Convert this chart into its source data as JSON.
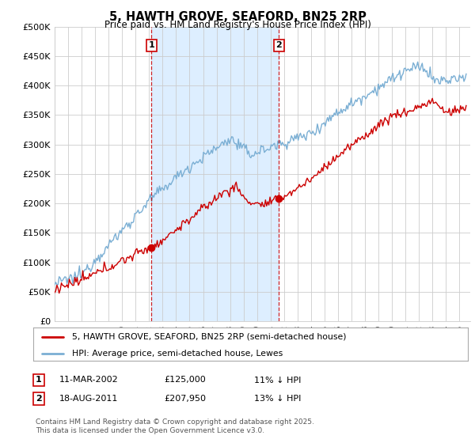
{
  "title": "5, HAWTH GROVE, SEAFORD, BN25 2RP",
  "subtitle": "Price paid vs. HM Land Registry's House Price Index (HPI)",
  "ylim": [
    0,
    500000
  ],
  "yticks": [
    0,
    50000,
    100000,
    150000,
    200000,
    250000,
    300000,
    350000,
    400000,
    450000,
    500000
  ],
  "ytick_labels": [
    "£0",
    "£50K",
    "£100K",
    "£150K",
    "£200K",
    "£250K",
    "£300K",
    "£350K",
    "£400K",
    "£450K",
    "£500K"
  ],
  "price_color": "#cc0000",
  "hpi_color": "#7bafd4",
  "vline_color": "#cc0000",
  "plot_bg_color": "#ffffff",
  "shade_color": "#ddeeff",
  "transaction1_x": 2002.18,
  "transaction1_price": 125000,
  "transaction2_x": 2011.63,
  "transaction2_price": 207950,
  "legend1": "5, HAWTH GROVE, SEAFORD, BN25 2RP (semi-detached house)",
  "legend2": "HPI: Average price, semi-detached house, Lewes",
  "note1_label": "1",
  "note1_date": "11-MAR-2002",
  "note1_price": "£125,000",
  "note1_hpi": "11% ↓ HPI",
  "note2_label": "2",
  "note2_date": "18-AUG-2011",
  "note2_price": "£207,950",
  "note2_hpi": "13% ↓ HPI",
  "footnote": "Contains HM Land Registry data © Crown copyright and database right 2025.\nThis data is licensed under the Open Government Licence v3.0."
}
